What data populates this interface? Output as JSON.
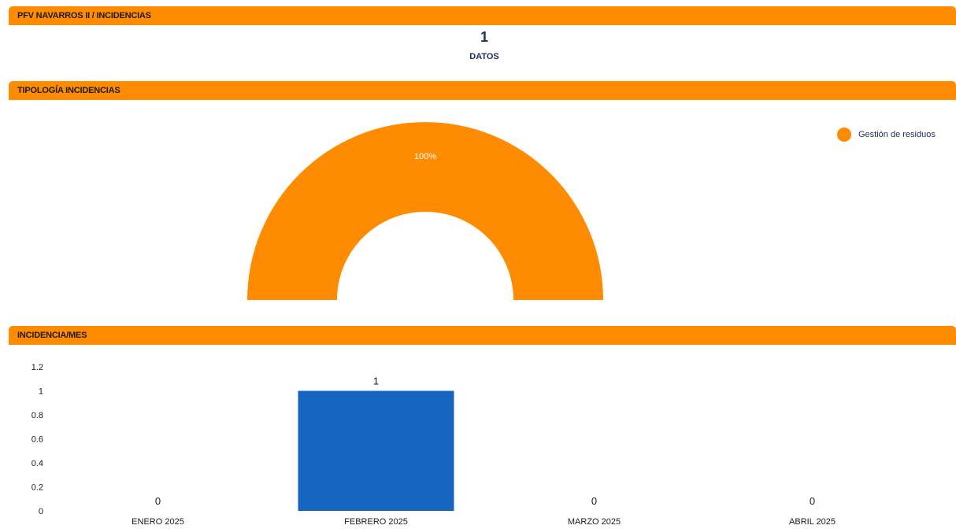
{
  "sections": {
    "summary_title": "PFV NAVARROS II / INCIDENCIAS",
    "typology_title": "TIPOLOGÍA INCIDENCIAS",
    "monthly_title": "INCIDENCIA/MES"
  },
  "kpi": {
    "value": "1",
    "label": "DATOS"
  },
  "colors": {
    "accent": "#ff8c00",
    "bar": "#1565c0",
    "text": "#1c2d5a"
  },
  "chart_data": [
    {
      "type": "pie",
      "variant": "half-donut",
      "categories": [
        "Gestión de residuos"
      ],
      "values": [
        100
      ],
      "data_labels": [
        "100%"
      ],
      "legend": "right"
    },
    {
      "type": "bar",
      "categories": [
        "ENERO 2025",
        "FEBRERO 2025",
        "MARZO 2025",
        "ABRIL 2025"
      ],
      "values": [
        0,
        1,
        0,
        0
      ],
      "yticks": [
        "0",
        "0.2",
        "0.4",
        "0.6",
        "0.8",
        "1",
        "1.2"
      ],
      "ylim": [
        0,
        1.2
      ],
      "grid": false
    }
  ]
}
